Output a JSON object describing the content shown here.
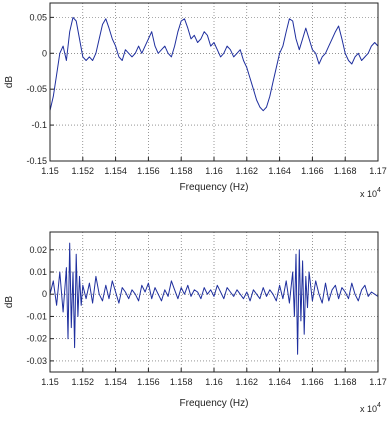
{
  "chart_data": [
    {
      "type": "line",
      "title": "",
      "xlabel": "Frequency (Hz)",
      "ylabel": "dB",
      "x_multiplier_label": "x 10^4",
      "xlim": [
        1.15,
        1.17
      ],
      "ylim": [
        -0.15,
        0.07
      ],
      "x_ticks": [
        1.15,
        1.152,
        1.154,
        1.156,
        1.158,
        1.16,
        1.162,
        1.164,
        1.166,
        1.168,
        1.17
      ],
      "x_tick_labels": [
        "1.15",
        "1.152",
        "1.154",
        "1.156",
        "1.158",
        "1.16",
        "1.162",
        "1.164",
        "1.166",
        "1.168",
        "1.17"
      ],
      "y_ticks": [
        -0.15,
        -0.1,
        -0.05,
        0,
        0.05
      ],
      "y_tick_labels": [
        "-0.15",
        "-0.1",
        "-0.05",
        "0",
        "0.05"
      ],
      "grid": true,
      "series_color": "#1f2f9e",
      "series": [
        {
          "x": [
            1.15,
            1.1502,
            1.1504,
            1.1506,
            1.1508,
            1.151,
            1.1512,
            1.1514,
            1.1516,
            1.1518,
            1.152,
            1.1522,
            1.1524,
            1.1526,
            1.1528,
            1.153,
            1.1532,
            1.1534,
            1.1536,
            1.1538,
            1.154,
            1.1542,
            1.1544,
            1.1546,
            1.1548,
            1.155,
            1.1552,
            1.1554,
            1.1556,
            1.1558,
            1.156,
            1.1562,
            1.1564,
            1.1566,
            1.1568,
            1.157,
            1.1572,
            1.1574,
            1.1576,
            1.1578,
            1.158,
            1.1582,
            1.1584,
            1.1586,
            1.1588,
            1.159,
            1.1592,
            1.1594,
            1.1596,
            1.1598,
            1.16,
            1.1602,
            1.1604,
            1.1606,
            1.1608,
            1.161,
            1.1612,
            1.1614,
            1.1616,
            1.1618,
            1.162,
            1.1622,
            1.1624,
            1.1626,
            1.1628,
            1.163,
            1.1632,
            1.1634,
            1.1636,
            1.1638,
            1.164,
            1.1642,
            1.1644,
            1.1646,
            1.1648,
            1.165,
            1.1652,
            1.1654,
            1.1656,
            1.1658,
            1.166,
            1.1662,
            1.1664,
            1.1666,
            1.1668,
            1.167,
            1.1672,
            1.1674,
            1.1676,
            1.1678,
            1.168,
            1.1682,
            1.1684,
            1.1686,
            1.1688,
            1.169,
            1.1692,
            1.1694,
            1.1696,
            1.1698,
            1.17
          ],
          "y": [
            -0.08,
            -0.06,
            -0.03,
            0.0,
            0.01,
            -0.01,
            0.03,
            0.05,
            0.045,
            0.02,
            -0.005,
            -0.01,
            -0.005,
            -0.01,
            0.0,
            0.02,
            0.04,
            0.048,
            0.035,
            0.02,
            0.01,
            -0.005,
            -0.01,
            0.005,
            0.0,
            -0.005,
            0.0,
            0.01,
            0.0,
            0.01,
            0.02,
            0.03,
            0.01,
            0.0,
            0.005,
            0.01,
            0.0,
            -0.005,
            0.01,
            0.03,
            0.045,
            0.048,
            0.035,
            0.02,
            0.025,
            0.015,
            0.02,
            0.03,
            0.025,
            0.01,
            0.015,
            0.005,
            -0.005,
            0.0,
            0.01,
            0.005,
            -0.005,
            0.0,
            0.005,
            -0.01,
            -0.02,
            -0.035,
            -0.05,
            -0.065,
            -0.075,
            -0.08,
            -0.075,
            -0.06,
            -0.04,
            -0.02,
            0.0,
            0.01,
            0.03,
            0.048,
            0.045,
            0.02,
            0.005,
            0.02,
            0.035,
            0.02,
            0.005,
            0.0,
            -0.015,
            -0.005,
            0.0,
            0.01,
            0.02,
            0.03,
            0.038,
            0.02,
            0.0,
            -0.01,
            -0.015,
            -0.005,
            0.0,
            -0.01,
            -0.005,
            0.0,
            0.01,
            0.015,
            0.01
          ]
        }
      ]
    },
    {
      "type": "line",
      "title": "",
      "xlabel": "Frequency (Hz)",
      "ylabel": "dB",
      "x_multiplier_label": "x 10^4",
      "xlim": [
        1.15,
        1.17
      ],
      "ylim": [
        -0.035,
        0.028
      ],
      "x_ticks": [
        1.15,
        1.152,
        1.154,
        1.156,
        1.158,
        1.16,
        1.162,
        1.164,
        1.166,
        1.168,
        1.17
      ],
      "x_tick_labels": [
        "1.15",
        "1.152",
        "1.154",
        "1.156",
        "1.158",
        "1.16",
        "1.162",
        "1.164",
        "1.166",
        "1.168",
        "1.17"
      ],
      "y_ticks": [
        -0.03,
        -0.02,
        -0.01,
        0,
        0.01,
        0.02
      ],
      "y_tick_labels": [
        "-0.03",
        "-0.02",
        "-0.01",
        "0",
        "0.01",
        "0.02"
      ],
      "grid": true,
      "series_color": "#1f2f9e",
      "series": [
        {
          "x": [
            1.15,
            1.1502,
            1.1504,
            1.1506,
            1.1508,
            1.151,
            1.1511,
            1.1512,
            1.1513,
            1.1514,
            1.1515,
            1.1516,
            1.1517,
            1.1518,
            1.1519,
            1.152,
            1.1522,
            1.1524,
            1.1526,
            1.1528,
            1.153,
            1.1532,
            1.1534,
            1.1536,
            1.1538,
            1.154,
            1.1542,
            1.1544,
            1.1546,
            1.1548,
            1.155,
            1.1552,
            1.1554,
            1.1556,
            1.1558,
            1.156,
            1.1562,
            1.1564,
            1.1566,
            1.1568,
            1.157,
            1.1572,
            1.1574,
            1.1576,
            1.1578,
            1.158,
            1.1582,
            1.1584,
            1.1586,
            1.1588,
            1.159,
            1.1592,
            1.1594,
            1.1596,
            1.1598,
            1.16,
            1.1602,
            1.1604,
            1.1606,
            1.1608,
            1.161,
            1.1612,
            1.1614,
            1.1616,
            1.1618,
            1.162,
            1.1622,
            1.1624,
            1.1626,
            1.1628,
            1.163,
            1.1632,
            1.1634,
            1.1636,
            1.1638,
            1.164,
            1.1642,
            1.1644,
            1.1646,
            1.1648,
            1.1649,
            1.165,
            1.1651,
            1.1652,
            1.1653,
            1.1654,
            1.1655,
            1.1656,
            1.1657,
            1.1658,
            1.166,
            1.1662,
            1.1664,
            1.1666,
            1.1668,
            1.167,
            1.1672,
            1.1674,
            1.1676,
            1.1678,
            1.168,
            1.1682,
            1.1684,
            1.1686,
            1.1688,
            1.169,
            1.1692,
            1.1694,
            1.1696,
            1.1698,
            1.17
          ],
          "y": [
            0.0,
            0.006,
            -0.005,
            0.01,
            -0.008,
            0.012,
            -0.02,
            0.023,
            -0.015,
            0.01,
            -0.024,
            0.018,
            -0.01,
            0.008,
            -0.005,
            0.004,
            -0.002,
            0.005,
            -0.004,
            0.008,
            0.0,
            -0.003,
            0.004,
            -0.002,
            0.006,
            0.001,
            -0.004,
            0.003,
            0.001,
            -0.002,
            0.002,
            0.0,
            -0.003,
            0.004,
            0.001,
            0.005,
            -0.002,
            0.003,
            0.0,
            -0.003,
            0.002,
            -0.001,
            0.006,
            0.002,
            -0.002,
            0.003,
            0.0,
            0.004,
            -0.001,
            0.002,
            0.001,
            -0.002,
            0.003,
            0.0,
            0.002,
            -0.001,
            0.004,
            0.001,
            -0.002,
            0.003,
            0.001,
            -0.001,
            0.002,
            0.0,
            -0.002,
            0.001,
            -0.003,
            0.002,
            0.0,
            -0.002,
            0.003,
            -0.001,
            0.002,
            0.0,
            -0.003,
            0.004,
            -0.002,
            0.006,
            -0.004,
            0.01,
            -0.01,
            0.018,
            -0.027,
            0.02,
            -0.012,
            0.015,
            -0.018,
            0.008,
            -0.006,
            0.01,
            -0.003,
            0.006,
            0.0,
            -0.004,
            0.005,
            -0.003,
            0.002,
            0.004,
            -0.002,
            0.003,
            0.001,
            -0.002,
            0.005,
            0.0,
            -0.003,
            0.002,
            0.004,
            -0.001,
            0.001,
            0.0,
            -0.001
          ]
        }
      ]
    }
  ]
}
